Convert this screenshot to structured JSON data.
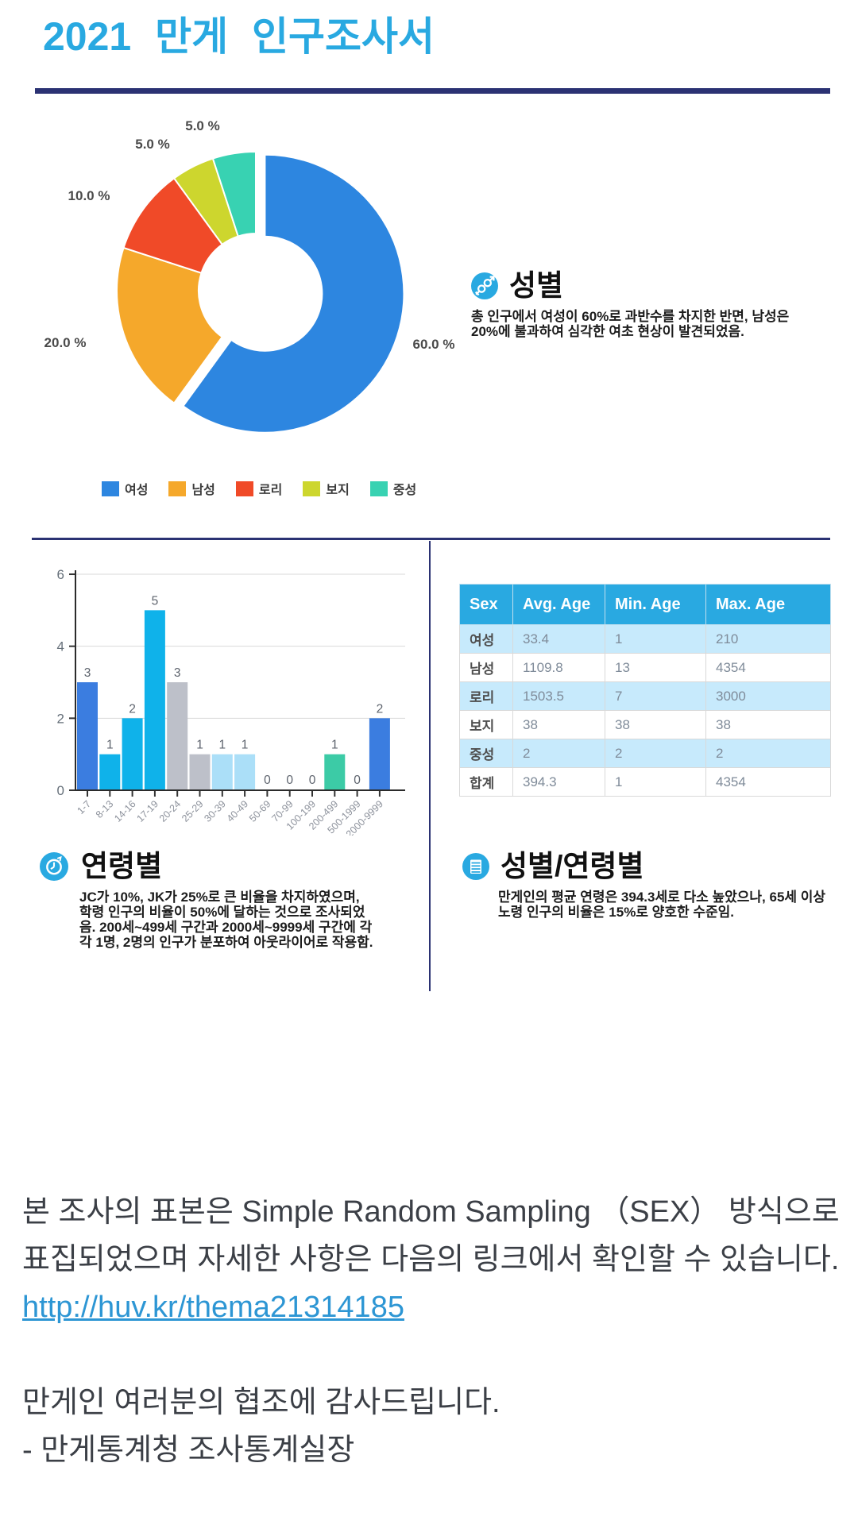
{
  "page": {
    "title": "2021 만게 인구조사서"
  },
  "sections": {
    "gender": {
      "title": "성별",
      "body": "총 인구에서 여성이 60%로 과반수를 차지한 반면, 남성은 20%에 불과하여 심각한 여초 현상이 발견되었음."
    },
    "age": {
      "title": "연령별",
      "body": "JC가 10%, JK가 25%로 큰 비율을 차지하였으며, 학령 인구의 비율이 50%에 달하는 것으로 조사되었음. 200세~499세 구간과 2000세~9999세 구간에 각각 1명, 2명의 인구가 분포하여 아웃라이어로 작용함."
    },
    "gender_age": {
      "title": "성별/연령별",
      "body": "만게인의 평균 연령은 394.3세로 다소 높았으나, 65세 이상 노령 인구의 비율은 15%로 양호한 수준임."
    }
  },
  "footer": {
    "para1": "본 조사의 표본은 Simple Random Sampling （SEX） 방식으로 표집되었으며 자세한 사항은 다음의 링크에서 확인할 수 있습니다.",
    "link": "http://huv.kr/thema21314185",
    "thanks": "만게인 여러분의 협조에 감사드립니다.",
    "signature": "- 만게통계청 조사통계실장"
  },
  "colors": {
    "accent_blue": "#29A9E1",
    "divider_navy": "#2B3273",
    "link_blue": "#2D96D4"
  },
  "chart_data": [
    {
      "type": "pie",
      "title": "성별 분포",
      "donut": true,
      "labels": [
        "여성",
        "남성",
        "로리",
        "보지",
        "중성"
      ],
      "values": [
        60.0,
        20.0,
        10.0,
        5.0,
        5.0
      ],
      "value_labels": [
        "60.0 %",
        "20.0 %",
        "10.0 %",
        "5.0 %",
        "5.0 %"
      ],
      "colors": [
        "#2D86E0",
        "#F5A82B",
        "#F04A28",
        "#CDD62E",
        "#38D2B2"
      ],
      "exploded_slice": "여성",
      "legend_position": "bottom"
    },
    {
      "type": "bar",
      "title": "연령별 인구 분포",
      "categories": [
        "1-7",
        "8-13",
        "14-16",
        "17-19",
        "20-24",
        "25-29",
        "30-39",
        "40-49",
        "50-69",
        "70-99",
        "100-199",
        "200-499",
        "500-1999",
        "2000-9999"
      ],
      "values": [
        3,
        1,
        2,
        5,
        3,
        1,
        1,
        1,
        0,
        0,
        0,
        1,
        0,
        2
      ],
      "bar_colors": [
        "#3B7DE0",
        "#0FB2EA",
        "#0FB2EA",
        "#0FB2EA",
        "#BDC0C9",
        "#BDC0C9",
        "#ABDFF8",
        "#ABDFF8",
        "#BDC0C9",
        "#BDC0C9",
        "#BDC0C9",
        "#3CCBA6",
        "#BDC0C9",
        "#3B7DE0"
      ],
      "xlabel": "",
      "ylabel": "",
      "ylim": [
        0,
        6
      ],
      "yticks": [
        0,
        2,
        4,
        6
      ],
      "grid": true
    },
    {
      "type": "table",
      "headers": [
        "Sex",
        "Avg. Age",
        "Min. Age",
        "Max. Age"
      ],
      "rows": [
        [
          "여성",
          "33.4",
          "1",
          "210"
        ],
        [
          "남성",
          "1109.8",
          "13",
          "4354"
        ],
        [
          "로리",
          "1503.5",
          "7",
          "3000"
        ],
        [
          "보지",
          "38",
          "38",
          "38"
        ],
        [
          "중성",
          "2",
          "2",
          "2"
        ],
        [
          "합계",
          "394.3",
          "1",
          "4354"
        ]
      ]
    }
  ]
}
